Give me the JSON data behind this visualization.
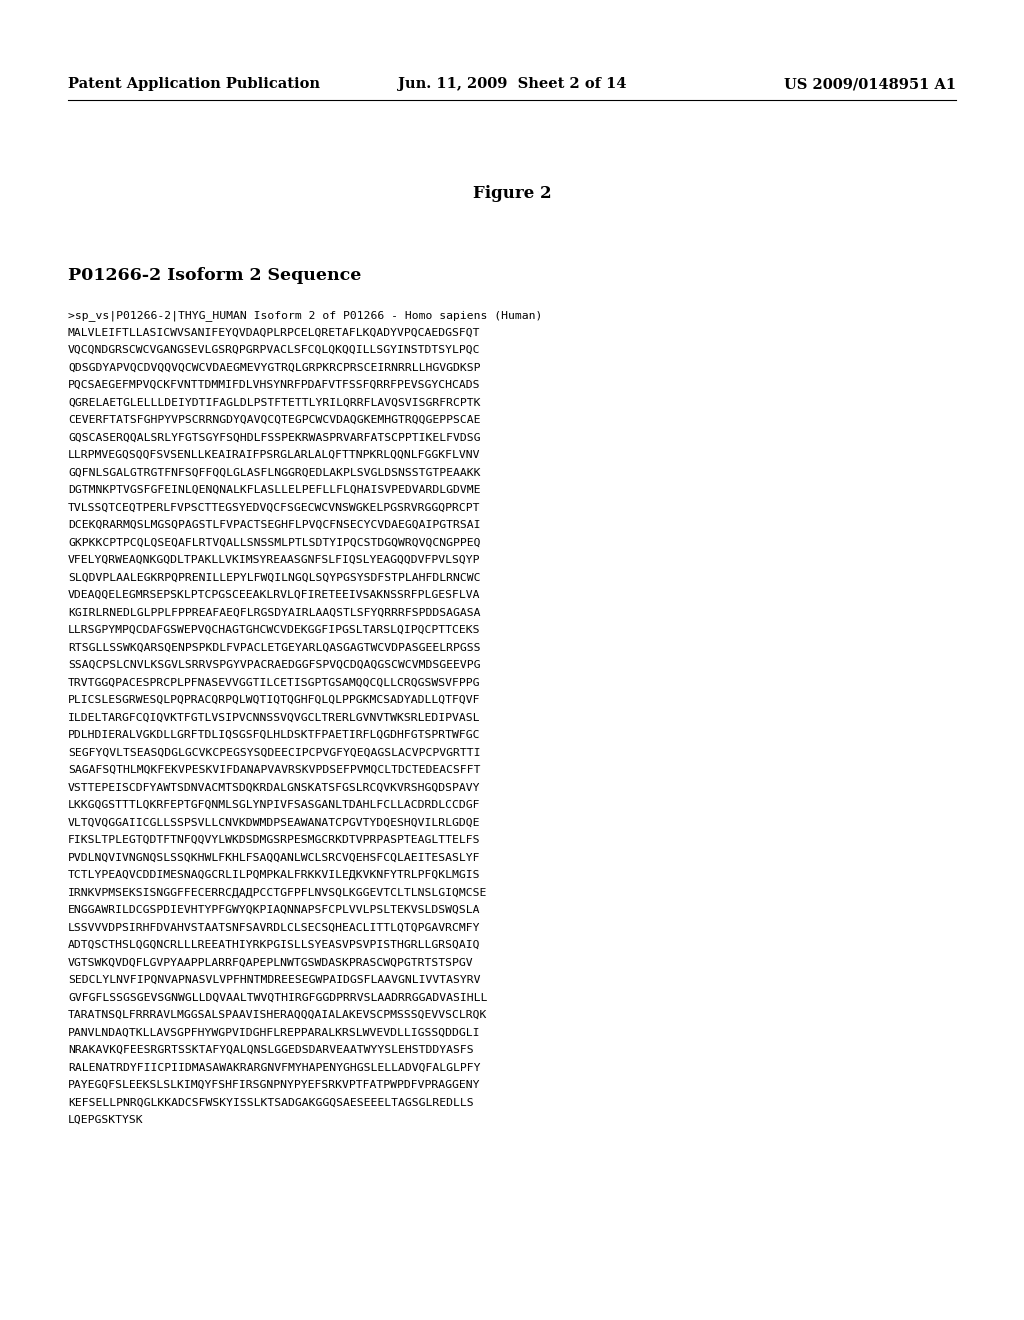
{
  "header_left": "Patent Application Publication",
  "header_center": "Jun. 11, 2009  Sheet 2 of 14",
  "header_right": "US 2009/0148951 A1",
  "figure_title": "Figure 2",
  "section_title": "P01266-2 Isoform 2 Sequence",
  "sequence_lines": [
    ">sp_vs|P01266-2|THYG_HUMAN Isoform 2 of P01266 - Homo sapiens (Human)",
    "MALVLEIFTLLASICWVSANIFEYQVDAQPLRPCELQRETAFLKQADYVPQCAEDGSFQT",
    "VQCQNDGRSCWCVGANGSEVLGSRQPGRPVACLSFCQLQKQQILLSGYINSTDTSYLPQC",
    "QDSGDYAPVQCDVQQVQCWCVDAEGMEVYGTRQLGRPKRCPRSCEIRNRRLLHGVGDKSP",
    "PQCSAEGEFMPVQCKFVNTTDMMIFDLVHSYNRFPDAFVTFSSFQRRFPEVSGYCHCADS",
    "QGRELAETGLELLLDEIYDTIFAGLDLPSTFTETTLYRILQRRFLAVQSVISGRFRCPTK",
    "CEVERFTATSFGHPYVPSCRRNGDYQAVQCQTEGPCWCVDAQGKEMHGTRQQGEPPSCAE",
    "GQSCASERQQALSRLYFGTSGYFSQHDLFSSPEKRWASPRVARFATSCPPTIKELFVDSG",
    "LLRPMVEGQSQQFSVSENLLKEAIRAIFPSRGLARLALQFTTNPKRLQQNLFGGKFLVNV",
    "GQFNLSGALGTRGTFNFSQFFQQLGLASFLNGGRQEDLAKPLSVGLDSNSSTGTPEAAKK",
    "DGTMNKPTVGSFGFEINLQENQNALKFLASLLELPEFLLFLQHAISVPEDVARDLGDVME",
    "TVLSSQTCEQTPERLFVPSCTTEGSYEDVQCFSGECWCVNSWGKELPGSRVRGGQPRCPT",
    "DCEKQRARMQSLMGSQPAGSTLFVPACTSEGHFLPVQCFNSECYCVDAEGQAIPGTRSAI",
    "GKPKKCPTPCQLQSEQAFLRTVQALLSNSSMLPTLSDTYIPQCSTDGQWRQVQCNGPPEQ",
    "VFELYQRWEAQNKGQDLTPAKLLVKIMSYREAASGNFSLFIQSLYEAGQQDVFPVLSQYP",
    "SLQDVPLAALEGKRPQPRENILLEPYLFWQILNGQLSQYPGSYSDFSTPLAHFDLRNCWC",
    "VDEAQQELEGMRSEPSKLPTCPGSCEEAKLRVLQFIRETEEIVSAKNSSRFPLGESFLVA",
    "KGIRLRNEDLGLPPLFPPREAFAEQFLRGSDYAIRLAAQSTLSFYQRRRFSPDDSAGASA",
    "LLRSGPYMPQCDAFGSWEPVQCHAGTGHCWCVDEKGGFIPGSLTARSLQIPQCPTTCEKS",
    "RTSGLLSSWKQARSQENPSPKDLFVPACLETGEYARLQASGAGTWCVDPASGEELRPGSS",
    "SSAQCPSLCNVLKSGVLSRRVSPGYVPACRAEDGGFSPVQCDQAQGSCWCVMDSGEEVPG",
    "TRVTGGQPACESPRCPLPFNASEVVGGTILCETISGPTGSAMQQCQLLCRQGSWSVFPPG",
    "PLICSLESGRWESQLPQPRACQRPQLWQTIQTQGHFQLQLPPGKMCSADYADLLQTFQVF",
    "ILDELTARGFCQIQVKTFGTLVSIPVCNNSSVQVGCLTRERLGVNVTWKSRLEDIPVASL",
    "PDLHDIERALVGKDLLGRFTDLIQSGSFQLHLDSKTFPAETIRFLQGDHFGTSPRTWFGC",
    "SEGFYQVLTSEASQDGLGCVKCPEGSYSQDEECIPCPVGFYQEQAGSLACVPCPVGRTTI",
    "SAGAFSQTHLMQKFEKVPESKVIFDANAPVAVRSKVPDSEFPVMQCLTDCTEDEACSFFT",
    "VSTTEPEISCDFYAWTSDNVACMTSDQKRDALGNSKATSFGSLRCQVKVRSHGQDSPAVY",
    "LKKGQGSTTTLQKRFEPTGFQNMLSGLYNPIVFSASGANLTDAHLFCLLACDRDLCCDGF",
    "VLTQVQGGAIICGLLSSPSVLLCNVKDWMDPSEAWANATCPGVTYDQESHQVILRLGDQE",
    "FIKSLTPLEGTQDTFTNFQQVYLWKDSDMGSRPESMGCRKDTVPRPASPTEAGLТTELFS",
    "PVDLNQVIVNGNQSLSSQKHWLFKHLFSAQQANLWCLSRCVQEHSFCQLAEITESASLYF",
    "TCTLYPEAQVCDDIMESNAQGCRLILPQMPKALFRKKVILEДKVKNFYTRLPFQKLMGIS",
    "IRNKVPMSEKSISNGGFFECERRCДАДPCCTGFPFLNVSQLKGGEVTCLTLNSLGIQMCSE",
    "ENGGAWRILDCGSPDIEVHTYPFGWYQKPIAQNNAPSFCPLVVLPSLTEKVSLDSWQSLA",
    "LSSVVVDPSIRHFDVAHVSTAATSNFSAVRDLCLSECSQHEACLITTLQTQPGAVRCMFY",
    "ADTQSCTHSLQGQNCRLLLREEATHIYRKPGISLLSYEASVPSVPISTHGRLLGRSQAIQ",
    "VGTSWKQVDQFLGVPYAAPPLARRFQAPEPLNWTGSWDASKPRASCWQPGTRTSTSPGV",
    "SEDCLYLNVFIPQNVAPNASVLVPFHNTMDREESEGWPAIDGSFLAAVGNLIVVTASYRV",
    "GVFGFLSSGSGEVSGNWGLLDQVAALTWVQTHIRGFGGDPRRVSLAADRRGGADVASIHLL",
    "TARATNSQLFRRRAVLMGGSALSPAAVISHERAQQQAIALAKEVSCPMSSSQEVVSCLRQK",
    "PANVLNDAQTKLLAVSGPFHYWGPVIDGHFLREPPARALKRSLWVEVDLLIGSSQDDGLI",
    "NRAKAVKQFEESRGRTSSKTAFYQALQNSLGGEDSDARVEAATWYYSLEHSTDDYASFS",
    "RALENATRDYFIICPIIDMASAWAKRARGNVFMYHAPENYGHGSLELLADVQFALGLPFY",
    "PAYEGQFSLEEKSLSLKIMQYFSHFIRSGNPNYPYEFSRKVPTFATPWPDFVPRAGGENY",
    "KEFSELLPNRQGLKKADCSFWSKYISSLKTSADGAKGGQSAESEEELTAGSGLREDLLS",
    "LQEPGSKTYSK"
  ],
  "bg_color": "#ffffff",
  "text_color": "#000000",
  "header_fontsize": 10.5,
  "figure_title_fontsize": 12,
  "section_title_fontsize": 12.5,
  "mono_fontsize": 8.2
}
